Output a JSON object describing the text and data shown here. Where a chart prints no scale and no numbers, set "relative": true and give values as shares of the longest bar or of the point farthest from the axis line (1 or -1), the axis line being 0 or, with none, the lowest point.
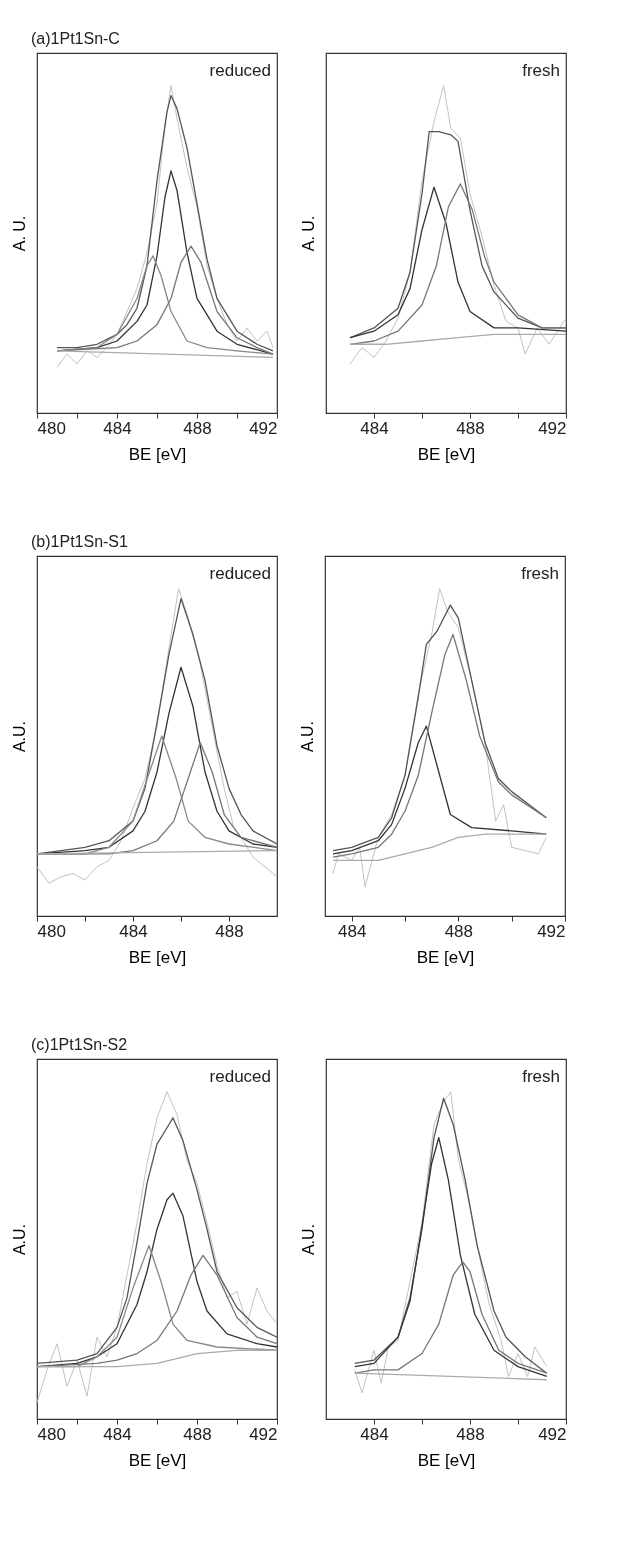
{
  "chart_data": [
    {
      "type": "line",
      "title": "(a)1Pt1Sn-C",
      "xlabel": "BE [eV]",
      "ylabel": "A. U.",
      "annotations": [
        "reduced"
      ],
      "relative": true,
      "tick_labels": "x",
      "xlim": [
        480,
        492
      ],
      "xticks": [
        480,
        {
          "value": 482,
          "label": null
        },
        484,
        {
          "value": 486,
          "label": null
        },
        488,
        {
          "value": 490,
          "label": null
        },
        492
      ],
      "series": [
        {
          "color": "#bbbbbb",
          "x": [
            481,
            481.5,
            482,
            482.5,
            483,
            483.5,
            484,
            484.5,
            485,
            485.5,
            486,
            486.4,
            486.7,
            487,
            487.5,
            488,
            488.5,
            489,
            489.5,
            490,
            490.5,
            491,
            491.5,
            491.8
          ],
          "values": [
            0.14,
            0.18,
            0.15,
            0.19,
            0.17,
            0.2,
            0.24,
            0.31,
            0.38,
            0.49,
            0.64,
            0.88,
            1.0,
            0.9,
            0.75,
            0.63,
            0.45,
            0.35,
            0.27,
            0.22,
            0.26,
            0.22,
            0.25,
            0.2
          ]
        },
        {
          "color": "#555555",
          "x": [
            481,
            482,
            483,
            484,
            484.5,
            485,
            485.5,
            486,
            486.5,
            486.7,
            487,
            487.5,
            488,
            488.5,
            489,
            490,
            491,
            491.8
          ],
          "values": [
            0.2,
            0.2,
            0.21,
            0.24,
            0.27,
            0.32,
            0.45,
            0.71,
            0.92,
            0.97,
            0.93,
            0.81,
            0.64,
            0.47,
            0.35,
            0.25,
            0.21,
            0.19
          ]
        },
        {
          "color": "#333333",
          "x": [
            481,
            483,
            484,
            485,
            485.5,
            486,
            486.4,
            486.7,
            487,
            487.5,
            488,
            489,
            490,
            491.8
          ],
          "values": [
            0.19,
            0.2,
            0.22,
            0.28,
            0.33,
            0.48,
            0.66,
            0.74,
            0.68,
            0.49,
            0.35,
            0.25,
            0.21,
            0.18
          ]
        },
        {
          "color": "#888888",
          "x": [
            481,
            483,
            484,
            485,
            485.5,
            485.8,
            486.2,
            486.7,
            487.5,
            488.5,
            490,
            491.8
          ],
          "values": [
            0.19,
            0.2,
            0.24,
            0.35,
            0.45,
            0.48,
            0.42,
            0.31,
            0.22,
            0.2,
            0.19,
            0.18
          ]
        },
        {
          "color": "#777777",
          "x": [
            481,
            484,
            485,
            486,
            486.7,
            487.2,
            487.7,
            488.2,
            489,
            490,
            491,
            491.8
          ],
          "values": [
            0.19,
            0.2,
            0.22,
            0.27,
            0.35,
            0.46,
            0.51,
            0.46,
            0.31,
            0.23,
            0.2,
            0.18
          ]
        },
        {
          "color": "#aaaaaa",
          "x": [
            481,
            491.8
          ],
          "values": [
            0.19,
            0.17
          ]
        }
      ]
    },
    {
      "type": "line",
      "xlabel": "BE [eV]",
      "ylabel": "A. U.",
      "annotations": [
        "fresh"
      ],
      "relative": true,
      "tick_labels": "x",
      "xlim": [
        482,
        492
      ],
      "xticks": [
        484,
        {
          "value": 486,
          "label": null
        },
        488,
        {
          "value": 490,
          "label": null
        },
        492
      ],
      "series": [
        {
          "color": "#bbbbbb",
          "x": [
            483,
            483.5,
            484,
            484.5,
            485,
            485.5,
            486,
            486.5,
            486.9,
            487.2,
            487.6,
            488,
            488.5,
            489,
            489.5,
            490,
            490.3,
            490.8,
            491.3,
            492
          ],
          "values": [
            0.15,
            0.2,
            0.17,
            0.22,
            0.29,
            0.43,
            0.71,
            0.89,
            1.0,
            0.87,
            0.84,
            0.67,
            0.54,
            0.39,
            0.28,
            0.26,
            0.18,
            0.26,
            0.21,
            0.29
          ]
        },
        {
          "color": "#555555",
          "x": [
            483,
            484,
            485,
            485.5,
            486,
            486.3,
            486.7,
            487.2,
            487.5,
            488,
            488.5,
            489,
            490,
            491,
            492
          ],
          "values": [
            0.23,
            0.26,
            0.32,
            0.43,
            0.67,
            0.86,
            0.86,
            0.85,
            0.83,
            0.62,
            0.45,
            0.37,
            0.29,
            0.26,
            0.26
          ]
        },
        {
          "color": "#333333",
          "x": [
            483,
            484,
            485,
            485.5,
            486,
            486.5,
            487,
            487.5,
            488,
            489,
            490,
            492
          ],
          "values": [
            0.23,
            0.25,
            0.3,
            0.38,
            0.56,
            0.69,
            0.58,
            0.4,
            0.31,
            0.26,
            0.26,
            0.25
          ]
        },
        {
          "color": "#777777",
          "x": [
            483,
            484,
            485,
            486,
            486.6,
            487.1,
            487.6,
            488.1,
            488.6,
            489,
            490,
            491,
            492
          ],
          "values": [
            0.21,
            0.22,
            0.25,
            0.33,
            0.45,
            0.63,
            0.7,
            0.62,
            0.48,
            0.4,
            0.3,
            0.26,
            0.26
          ]
        },
        {
          "color": "#aaaaaa",
          "x": [
            483,
            484.5,
            486,
            487.5,
            489,
            492
          ],
          "values": [
            0.21,
            0.21,
            0.22,
            0.23,
            0.24,
            0.24
          ]
        }
      ]
    },
    {
      "type": "line",
      "title": "(b)1Pt1Sn-S1",
      "xlabel": "BE [eV]",
      "ylabel": "A.U.",
      "annotations": [
        "reduced"
      ],
      "relative": true,
      "tick_labels": "x",
      "xlim": [
        480,
        490
      ],
      "xticks": [
        480,
        {
          "value": 482,
          "label": null
        },
        484,
        {
          "value": 486,
          "label": null
        },
        488
      ],
      "series": [
        {
          "color": "#bbbbbb",
          "x": [
            480,
            480.5,
            481,
            481.5,
            482,
            482.5,
            483,
            483.5,
            484,
            484.5,
            485,
            485.5,
            485.9,
            486.3,
            486.8,
            487.3,
            487.8,
            488.2,
            488.5,
            489,
            489.5,
            490
          ],
          "values": [
            0.15,
            0.1,
            0.12,
            0.13,
            0.11,
            0.15,
            0.17,
            0.23,
            0.33,
            0.42,
            0.58,
            0.82,
            1.0,
            0.91,
            0.77,
            0.58,
            0.39,
            0.27,
            0.24,
            0.18,
            0.15,
            0.12
          ]
        },
        {
          "color": "#555555",
          "x": [
            480,
            482,
            483,
            484,
            484.5,
            485,
            485.5,
            486,
            486.5,
            487,
            487.5,
            488,
            488.5,
            489,
            490
          ],
          "values": [
            0.19,
            0.21,
            0.23,
            0.29,
            0.39,
            0.59,
            0.8,
            0.97,
            0.86,
            0.72,
            0.52,
            0.39,
            0.31,
            0.26,
            0.22
          ]
        },
        {
          "color": "#333333",
          "x": [
            480,
            482,
            483,
            484,
            484.5,
            485,
            485.5,
            486,
            486.5,
            487,
            487.5,
            488,
            489,
            490
          ],
          "values": [
            0.19,
            0.2,
            0.21,
            0.26,
            0.32,
            0.44,
            0.62,
            0.76,
            0.64,
            0.44,
            0.32,
            0.26,
            0.22,
            0.21
          ]
        },
        {
          "color": "#888888",
          "x": [
            480,
            482,
            483,
            484,
            484.5,
            485.2,
            485.8,
            486.3,
            487,
            488,
            490
          ],
          "values": [
            0.19,
            0.19,
            0.21,
            0.29,
            0.4,
            0.55,
            0.42,
            0.29,
            0.24,
            0.22,
            0.2
          ]
        },
        {
          "color": "#777777",
          "x": [
            480,
            483,
            484,
            485,
            485.7,
            486.3,
            486.8,
            487.3,
            487.8,
            488.5,
            490
          ],
          "values": [
            0.19,
            0.19,
            0.2,
            0.23,
            0.29,
            0.42,
            0.53,
            0.44,
            0.31,
            0.24,
            0.21
          ]
        },
        {
          "color": "#aaaaaa",
          "x": [
            480,
            490
          ],
          "values": [
            0.19,
            0.2
          ]
        }
      ]
    },
    {
      "type": "line",
      "xlabel": "BE [eV]",
      "ylabel": "A.U.",
      "annotations": [
        "fresh"
      ],
      "relative": true,
      "tick_labels": "x",
      "xlim": [
        483,
        492
      ],
      "xticks": [
        484,
        {
          "value": 486,
          "label": null
        },
        488,
        {
          "value": 490,
          "label": null
        },
        492
      ],
      "series": [
        {
          "color": "#bbbbbb",
          "x": [
            483.3,
            483.5,
            484,
            484.3,
            484.5,
            485,
            485.5,
            486,
            486.5,
            487,
            487.3,
            487.6,
            488,
            488.5,
            489,
            489.4,
            489.7,
            490,
            490.5,
            491,
            491.3
          ],
          "values": [
            0.13,
            0.19,
            0.17,
            0.21,
            0.09,
            0.24,
            0.31,
            0.43,
            0.68,
            0.86,
            1.0,
            0.93,
            0.88,
            0.72,
            0.53,
            0.29,
            0.34,
            0.21,
            0.2,
            0.19,
            0.24
          ]
        },
        {
          "color": "#555555",
          "x": [
            483.3,
            484,
            485,
            485.5,
            486,
            486.5,
            486.8,
            487.2,
            487.7,
            488,
            488.5,
            489,
            489.5,
            490,
            491.3
          ],
          "values": [
            0.2,
            0.21,
            0.24,
            0.3,
            0.43,
            0.67,
            0.83,
            0.87,
            0.95,
            0.91,
            0.72,
            0.53,
            0.42,
            0.38,
            0.3
          ]
        },
        {
          "color": "#333333",
          "x": [
            483.3,
            484,
            485,
            485.5,
            486,
            486.5,
            486.8,
            487.2,
            487.7,
            488.5,
            490,
            491.3
          ],
          "values": [
            0.19,
            0.2,
            0.23,
            0.28,
            0.39,
            0.53,
            0.58,
            0.46,
            0.31,
            0.27,
            0.26,
            0.25
          ]
        },
        {
          "color": "#777777",
          "x": [
            483.3,
            484,
            485,
            485.5,
            486,
            486.5,
            487,
            487.5,
            487.8,
            488.3,
            488.8,
            489.5,
            490,
            491.3
          ],
          "values": [
            0.18,
            0.19,
            0.21,
            0.25,
            0.32,
            0.43,
            0.62,
            0.8,
            0.86,
            0.72,
            0.55,
            0.41,
            0.37,
            0.3
          ]
        },
        {
          "color": "#aaaaaa",
          "x": [
            483.3,
            485,
            486,
            487,
            488,
            489,
            490,
            491.3
          ],
          "values": [
            0.17,
            0.17,
            0.19,
            0.21,
            0.24,
            0.25,
            0.25,
            0.25
          ]
        }
      ]
    },
    {
      "type": "line",
      "title": "(c)1Pt1Sn-S2",
      "xlabel": "BE [eV]",
      "ylabel": "A.U.",
      "annotations": [
        "reduced"
      ],
      "relative": true,
      "tick_labels": "x",
      "xlim": [
        480,
        492
      ],
      "xticks": [
        480,
        {
          "value": 482,
          "label": null
        },
        484,
        {
          "value": 486,
          "label": null
        },
        488,
        {
          "value": 490,
          "label": null
        },
        492
      ],
      "series": [
        {
          "color": "#bbbbbb",
          "x": [
            480,
            480.5,
            481,
            481.5,
            482,
            482.5,
            483,
            483.5,
            484,
            484.5,
            485,
            485.5,
            486,
            486.5,
            487,
            487.5,
            488,
            488.5,
            489,
            489.5,
            490,
            490.5,
            491,
            491.5,
            492
          ],
          "values": [
            0.05,
            0.15,
            0.23,
            0.1,
            0.18,
            0.07,
            0.25,
            0.19,
            0.28,
            0.44,
            0.6,
            0.78,
            0.92,
            1.0,
            0.93,
            0.79,
            0.72,
            0.6,
            0.47,
            0.37,
            0.39,
            0.29,
            0.4,
            0.33,
            0.29
          ]
        },
        {
          "color": "#555555",
          "x": [
            480,
            482,
            483,
            484,
            484.5,
            485,
            485.5,
            486,
            486.5,
            486.8,
            487.3,
            488,
            488.5,
            489,
            490,
            491,
            492
          ],
          "values": [
            0.17,
            0.18,
            0.2,
            0.28,
            0.37,
            0.54,
            0.72,
            0.84,
            0.89,
            0.92,
            0.85,
            0.7,
            0.58,
            0.45,
            0.34,
            0.28,
            0.25
          ]
        },
        {
          "color": "#333333",
          "x": [
            480,
            482,
            483,
            484,
            485,
            485.5,
            486,
            486.5,
            486.8,
            487.3,
            488,
            488.5,
            489.5,
            491,
            492
          ],
          "values": [
            0.16,
            0.17,
            0.19,
            0.23,
            0.35,
            0.45,
            0.58,
            0.67,
            0.69,
            0.62,
            0.42,
            0.33,
            0.26,
            0.23,
            0.22
          ]
        },
        {
          "color": "#888888",
          "x": [
            480,
            482,
            483,
            484,
            484.8,
            485.6,
            486.2,
            486.8,
            487.5,
            489,
            492
          ],
          "values": [
            0.16,
            0.16,
            0.19,
            0.25,
            0.4,
            0.53,
            0.42,
            0.29,
            0.24,
            0.22,
            0.21
          ]
        },
        {
          "color": "#777777",
          "x": [
            480,
            483,
            484,
            485,
            486,
            487,
            487.7,
            488.3,
            489,
            490,
            491,
            492
          ],
          "values": [
            0.16,
            0.17,
            0.18,
            0.2,
            0.24,
            0.33,
            0.44,
            0.5,
            0.44,
            0.31,
            0.25,
            0.23
          ]
        },
        {
          "color": "#aaaaaa",
          "x": [
            480,
            484,
            486,
            488,
            490,
            492
          ],
          "values": [
            0.16,
            0.16,
            0.17,
            0.2,
            0.21,
            0.21
          ]
        }
      ]
    },
    {
      "type": "line",
      "xlabel": "BE [eV]",
      "ylabel": "A.U.",
      "annotations": [
        "fresh"
      ],
      "relative": true,
      "tick_labels": "x",
      "xlim": [
        482,
        492
      ],
      "xticks": [
        484,
        {
          "value": 486,
          "label": null
        },
        488,
        {
          "value": 490,
          "label": null
        },
        492
      ],
      "series": [
        {
          "color": "#bbbbbb",
          "x": [
            483.2,
            483.5,
            484,
            484.3,
            484.6,
            485,
            485.5,
            486,
            486.5,
            486.9,
            487.2,
            487.5,
            487.9,
            488.3,
            488.8,
            489.3,
            489.6,
            490,
            490.4,
            490.7,
            491.2
          ],
          "values": [
            0.15,
            0.08,
            0.21,
            0.11,
            0.22,
            0.24,
            0.42,
            0.6,
            0.9,
            0.97,
            1.0,
            0.8,
            0.68,
            0.53,
            0.35,
            0.24,
            0.13,
            0.2,
            0.13,
            0.22,
            0.16
          ]
        },
        {
          "color": "#555555",
          "x": [
            483.2,
            484,
            485,
            485.5,
            486,
            486.5,
            486.9,
            487.3,
            487.8,
            488.3,
            489,
            489.5,
            490.3,
            491.2
          ],
          "values": [
            0.17,
            0.18,
            0.25,
            0.37,
            0.58,
            0.86,
            0.98,
            0.9,
            0.73,
            0.53,
            0.33,
            0.25,
            0.19,
            0.14
          ]
        },
        {
          "color": "#333333",
          "x": [
            483.2,
            484,
            485,
            485.5,
            486,
            486.4,
            486.7,
            487.1,
            487.6,
            488.2,
            489,
            490,
            491.2
          ],
          "values": [
            0.16,
            0.17,
            0.25,
            0.36,
            0.59,
            0.78,
            0.86,
            0.73,
            0.5,
            0.32,
            0.21,
            0.16,
            0.13
          ]
        },
        {
          "color": "#777777",
          "x": [
            483.2,
            484,
            485,
            486,
            486.7,
            487.3,
            487.7,
            488,
            488.5,
            489.2,
            490,
            491.2
          ],
          "values": [
            0.14,
            0.15,
            0.15,
            0.2,
            0.29,
            0.44,
            0.48,
            0.45,
            0.32,
            0.21,
            0.17,
            0.14
          ]
        },
        {
          "color": "#aaaaaa",
          "x": [
            483.2,
            491.2
          ],
          "values": [
            0.14,
            0.12
          ]
        }
      ]
    }
  ]
}
